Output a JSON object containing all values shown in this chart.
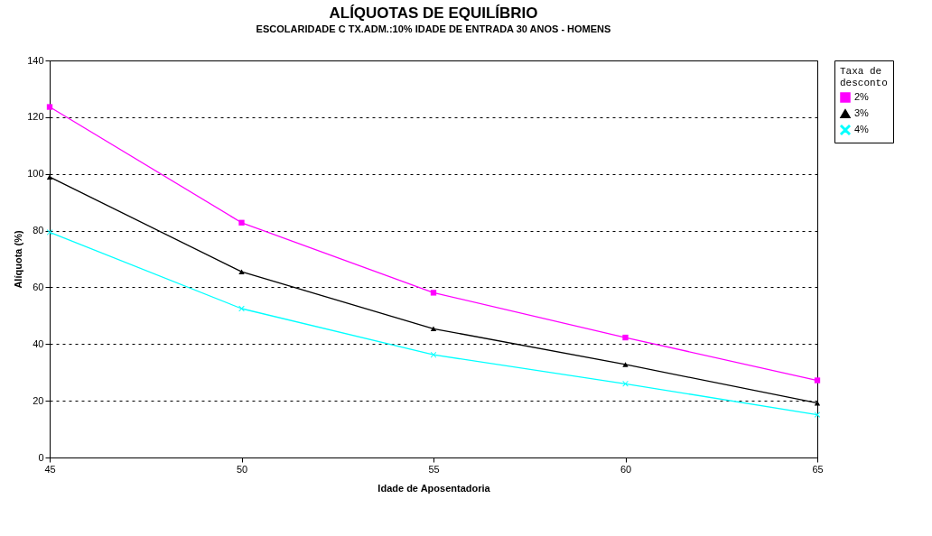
{
  "chart_data": {
    "type": "line",
    "title": "ALÍQUOTAS DE EQUILÍBRIO",
    "subtitle": "ESCOLARIDADE C TX.ADM.:10% IDADE DE ENTRADA 30 ANOS - HOMENS",
    "xlabel": "Idade de Aposentadoria",
    "ylabel": "Alíquota (%)",
    "legend_title": "Taxa de desconto",
    "x": [
      45,
      50,
      55,
      60,
      65
    ],
    "series": [
      {
        "name": "2%",
        "color": "#ff00ff",
        "marker": "square",
        "values": [
          123.6,
          82.8,
          58.1,
          42.3,
          27.2
        ]
      },
      {
        "name": "3%",
        "color": "#000000",
        "marker": "triangle",
        "values": [
          98.9,
          65.5,
          45.4,
          32.8,
          19.2
        ]
      },
      {
        "name": "4%",
        "color": "#00ffff",
        "marker": "cross",
        "values": [
          79.4,
          52.5,
          36.2,
          26.0,
          15.1
        ]
      }
    ],
    "xlim": [
      45,
      65
    ],
    "xticks": [
      45,
      50,
      55,
      60,
      65
    ],
    "ylim": [
      0,
      140
    ],
    "yticks": [
      0,
      20,
      40,
      60,
      80,
      100,
      120,
      140
    ],
    "grid": "y",
    "legend": "right",
    "line_style": "solid"
  }
}
